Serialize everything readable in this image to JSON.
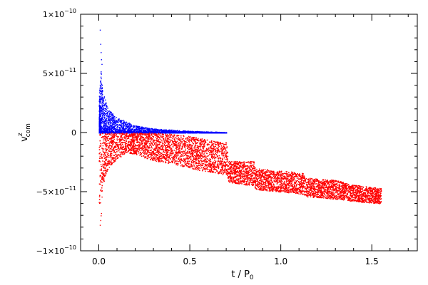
{
  "chart_data": {
    "type": "scatter",
    "title": "",
    "xlabel": "t / P",
    "xlabel_sub": "0",
    "ylabel": "v",
    "ylabel_sup": "z",
    "ylabel_sub": "com",
    "xlim": [
      -0.1,
      1.75
    ],
    "ylim": [
      -1e-10,
      1e-10
    ],
    "grid": false,
    "x_ticks": [
      {
        "value": 0.0,
        "label": "0.0"
      },
      {
        "value": 0.5,
        "label": "0.5"
      },
      {
        "value": 1.0,
        "label": "1.0"
      },
      {
        "value": 1.5,
        "label": "1.5"
      }
    ],
    "y_ticks": [
      {
        "value": 1e-10,
        "mant": "1×10",
        "exp": "−10"
      },
      {
        "value": 5e-11,
        "mant": "5×10",
        "exp": "−11"
      },
      {
        "value": 0,
        "mant": "0",
        "exp": ""
      },
      {
        "value": -5e-11,
        "mant": "−5×10",
        "exp": "−11"
      },
      {
        "value": -1e-10,
        "mant": "−1×10",
        "exp": "−10"
      }
    ],
    "series": [
      {
        "color": "#0000ff",
        "description": "positive velocity points",
        "envelope": {
          "t": [
            0.0,
            0.01,
            0.02,
            0.05,
            0.1,
            0.2,
            0.3,
            0.4,
            0.5,
            0.6,
            0.7
          ],
          "upper": [
            3e-11,
            5.5e-11,
            3.5e-11,
            2e-11,
            1.3e-11,
            6e-12,
            3.5e-12,
            2.5e-12,
            1.5e-12,
            1e-12,
            5e-13
          ],
          "lower": [
            0,
            0,
            0,
            0,
            0,
            0,
            0,
            0,
            0,
            0,
            0
          ]
        },
        "outliers": [
          [
            0.005,
            8.7e-11
          ],
          [
            0.008,
            7.5e-11
          ],
          [
            0.01,
            6.8e-11
          ],
          [
            0.012,
            6.2e-11
          ],
          [
            0.015,
            5.8e-11
          ]
        ]
      },
      {
        "color": "#ff0000",
        "description": "negative velocity points",
        "envelope": {
          "t": [
            0.0,
            0.01,
            0.02,
            0.05,
            0.1,
            0.15,
            0.2,
            0.3,
            0.4,
            0.5,
            0.6,
            0.7,
            0.71,
            0.85,
            0.86,
            1.0,
            1.12,
            1.13,
            1.3,
            1.4,
            1.55
          ],
          "upper": [
            0,
            0,
            0,
            0,
            0,
            0,
            0,
            0,
            -1e-12,
            -3e-12,
            -6e-12,
            -8e-12,
            -2.4e-11,
            -2.4e-11,
            -3e-11,
            -3.2e-11,
            -3.4e-11,
            -3.8e-11,
            -4e-11,
            -4.4e-11,
            -4.7e-11
          ],
          "lower": [
            -6e-11,
            -6.5e-11,
            -4.5e-11,
            -3e-11,
            -2.2e-11,
            -1.7e-11,
            -1.8e-11,
            -2.4e-11,
            -2.6e-11,
            -3e-11,
            -3.3e-11,
            -3.6e-11,
            -4.2e-11,
            -4.5e-11,
            -4.8e-11,
            -5e-11,
            -5.2e-11,
            -5.4e-11,
            -5.6e-11,
            -5.8e-11,
            -6e-11
          ]
        },
        "outliers": [
          [
            0.005,
            -7.8e-11
          ],
          [
            0.008,
            -7.4e-11
          ],
          [
            0.01,
            -7e-11
          ],
          [
            0.012,
            -6.8e-11
          ]
        ]
      }
    ]
  }
}
